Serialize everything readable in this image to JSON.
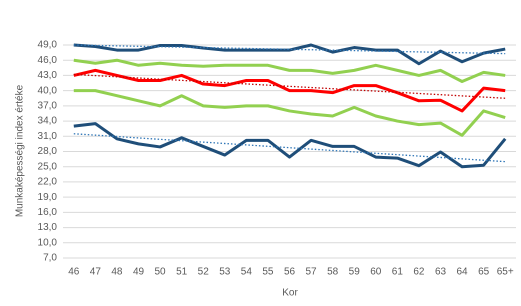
{
  "chart_data": {
    "type": "line",
    "y_label": "Munkaképességi index értéke",
    "x_label": "Kor",
    "categories": [
      "46",
      "47",
      "48",
      "49",
      "50",
      "51",
      "52",
      "53",
      "54",
      "55",
      "56",
      "57",
      "58",
      "59",
      "60",
      "61",
      "62",
      "63",
      "64",
      "65",
      "65+"
    ],
    "series": [
      {
        "color": "#1f4e79",
        "values": [
          49,
          48.7,
          48,
          48,
          48.9,
          48.9,
          48.4,
          48,
          48,
          48,
          48,
          49,
          47.6,
          48.5,
          48,
          48,
          45.3,
          47.8,
          45.7,
          47.4,
          48.2
        ]
      },
      {
        "color": "#92d050",
        "values": [
          46,
          45.4,
          46,
          45,
          45.4,
          45,
          44.8,
          45,
          45,
          45,
          44,
          44,
          43.4,
          44,
          45,
          44,
          43,
          44,
          41.8,
          43.6,
          43
        ]
      },
      {
        "color": "#ff0000",
        "values": [
          43,
          44,
          43,
          42,
          42,
          43,
          41.3,
          41,
          42,
          42,
          40,
          40,
          39.6,
          41,
          41,
          39.6,
          38,
          38.1,
          36,
          40.5,
          40
        ]
      },
      {
        "color": "#92d050",
        "values": [
          40,
          40,
          39,
          38,
          37,
          39,
          37,
          36.7,
          37,
          37,
          36,
          35.4,
          35,
          36.7,
          35,
          34,
          33.3,
          33.6,
          31.2,
          36,
          34.7
        ]
      },
      {
        "color": "#1f4e79",
        "values": [
          33,
          33.5,
          30.5,
          29.5,
          28.9,
          30.7,
          29,
          27.3,
          30.2,
          30.2,
          26.9,
          30.2,
          29,
          29,
          26.9,
          26.7,
          25.2,
          27.9,
          25,
          25.3,
          30.5
        ]
      }
    ],
    "trendlines": [
      {
        "color": "#2e75b6",
        "values": [
          49,
          47.3
        ]
      },
      {
        "color": "#c00000",
        "values": [
          43.2,
          38.5
        ]
      },
      {
        "color": "#2e75b6",
        "values": [
          31.5,
          26
        ]
      }
    ],
    "ylim": [
      7,
      49
    ],
    "yticks": [
      {
        "value": 7,
        "label": "7,0"
      },
      {
        "value": 10,
        "label": "10,0"
      },
      {
        "value": 13,
        "label": "13,0"
      },
      {
        "value": 16,
        "label": "16,0"
      },
      {
        "value": 19,
        "label": "19,0"
      },
      {
        "value": 22,
        "label": "22,0"
      },
      {
        "value": 25,
        "label": "25,0"
      },
      {
        "value": 28,
        "label": "28,0"
      },
      {
        "value": 31,
        "label": "31,0"
      },
      {
        "value": 34,
        "label": "34,0"
      },
      {
        "value": 37,
        "label": "37,0"
      },
      {
        "value": 40,
        "label": "40,0"
      },
      {
        "value": 43,
        "label": "43,0"
      },
      {
        "value": 46,
        "label": "46,0"
      },
      {
        "value": 49,
        "label": "49,0"
      }
    ],
    "grid": true
  }
}
